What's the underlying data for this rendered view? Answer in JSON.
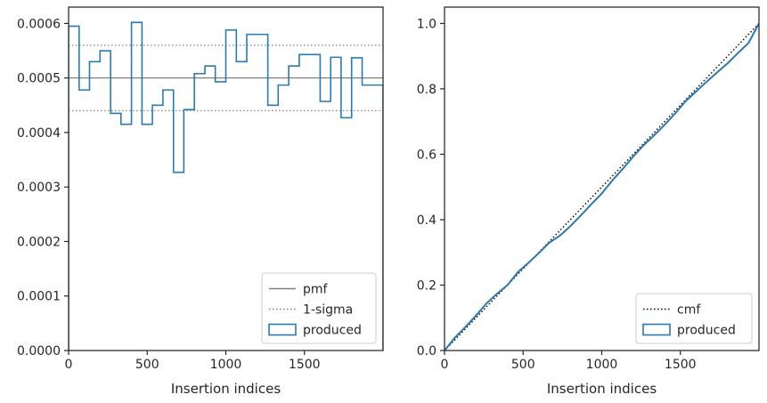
{
  "chart_data": [
    {
      "type": "step",
      "xlabel": "Insertion indices",
      "ylabel": "",
      "xlim": [
        0,
        2000
      ],
      "ylim": [
        0,
        0.00063
      ],
      "x_ticks": [
        0,
        500,
        1000,
        1500
      ],
      "x_tick_labels": [
        "0",
        "500",
        "1000",
        "1500"
      ],
      "y_ticks": [
        0,
        0.0001,
        0.0002,
        0.0003,
        0.0004,
        0.0005,
        0.0006
      ],
      "y_tick_labels": [
        "0.0000",
        "0.0001",
        "0.0002",
        "0.0003",
        "0.0004",
        "0.0005",
        "0.0006"
      ],
      "legend_position": "lower-right",
      "hlines": [
        {
          "name": "pmf",
          "y": 0.0005,
          "style": "solid",
          "color": "#808080"
        },
        {
          "name": "1-sigma",
          "y": 0.00056,
          "style": "dotted",
          "color": "#808080"
        },
        {
          "name": "",
          "y": 0.00044,
          "style": "dotted",
          "color": "#808080"
        }
      ],
      "series": [
        {
          "name": "produced",
          "color": "#2a7ab0",
          "bin_edges": [
            0,
            67,
            133,
            200,
            267,
            333,
            400,
            467,
            533,
            600,
            667,
            733,
            800,
            867,
            933,
            1000,
            1067,
            1133,
            1200,
            1267,
            1333,
            1400,
            1467,
            1533,
            1600,
            1667,
            1733,
            1800,
            1867,
            1933,
            2000
          ],
          "values": [
            0.000595,
            0.000478,
            0.00053,
            0.00055,
            0.000435,
            0.000415,
            0.000602,
            0.000415,
            0.00045,
            0.000478,
            0.000327,
            0.000442,
            0.000508,
            0.000522,
            0.000493,
            0.000588,
            0.00053,
            0.00058,
            0.00058,
            0.00045,
            0.000487,
            0.000522,
            0.000543,
            0.000543,
            0.000457,
            0.000538,
            0.000427,
            0.000537,
            0.000487,
            0.000487
          ]
        }
      ],
      "legend": [
        "pmf",
        "1-sigma",
        "produced"
      ]
    },
    {
      "type": "line",
      "xlabel": "Insertion indices",
      "ylabel": "",
      "xlim": [
        0,
        2000
      ],
      "ylim": [
        0,
        1.05
      ],
      "x_ticks": [
        0,
        500,
        1000,
        1500
      ],
      "x_tick_labels": [
        "0",
        "500",
        "1000",
        "1500"
      ],
      "y_ticks": [
        0,
        0.2,
        0.4,
        0.6,
        0.8,
        1.0
      ],
      "y_tick_labels": [
        "0.0",
        "0.2",
        "0.4",
        "0.6",
        "0.8",
        "1.0"
      ],
      "legend_position": "lower-right",
      "series": [
        {
          "name": "cmf",
          "style": "dotted",
          "color": "#000000",
          "x": [
            0,
            2000
          ],
          "y": [
            0,
            1.0
          ]
        },
        {
          "name": "produced",
          "style": "solid",
          "color": "#2a7ab0",
          "x": [
            0,
            67,
            133,
            200,
            267,
            333,
            400,
            467,
            533,
            600,
            667,
            733,
            800,
            867,
            933,
            1000,
            1067,
            1133,
            1200,
            1267,
            1333,
            1400,
            1467,
            1533,
            1600,
            1667,
            1733,
            1800,
            1867,
            1933,
            2000
          ],
          "y": [
            0,
            0.04,
            0.072,
            0.107,
            0.144,
            0.173,
            0.2,
            0.24,
            0.268,
            0.298,
            0.33,
            0.351,
            0.38,
            0.413,
            0.447,
            0.48,
            0.52,
            0.555,
            0.593,
            0.628,
            0.658,
            0.69,
            0.725,
            0.762,
            0.792,
            0.822,
            0.85,
            0.878,
            0.91,
            0.94,
            1.0
          ]
        }
      ],
      "legend": [
        "cmf",
        "produced"
      ]
    }
  ]
}
